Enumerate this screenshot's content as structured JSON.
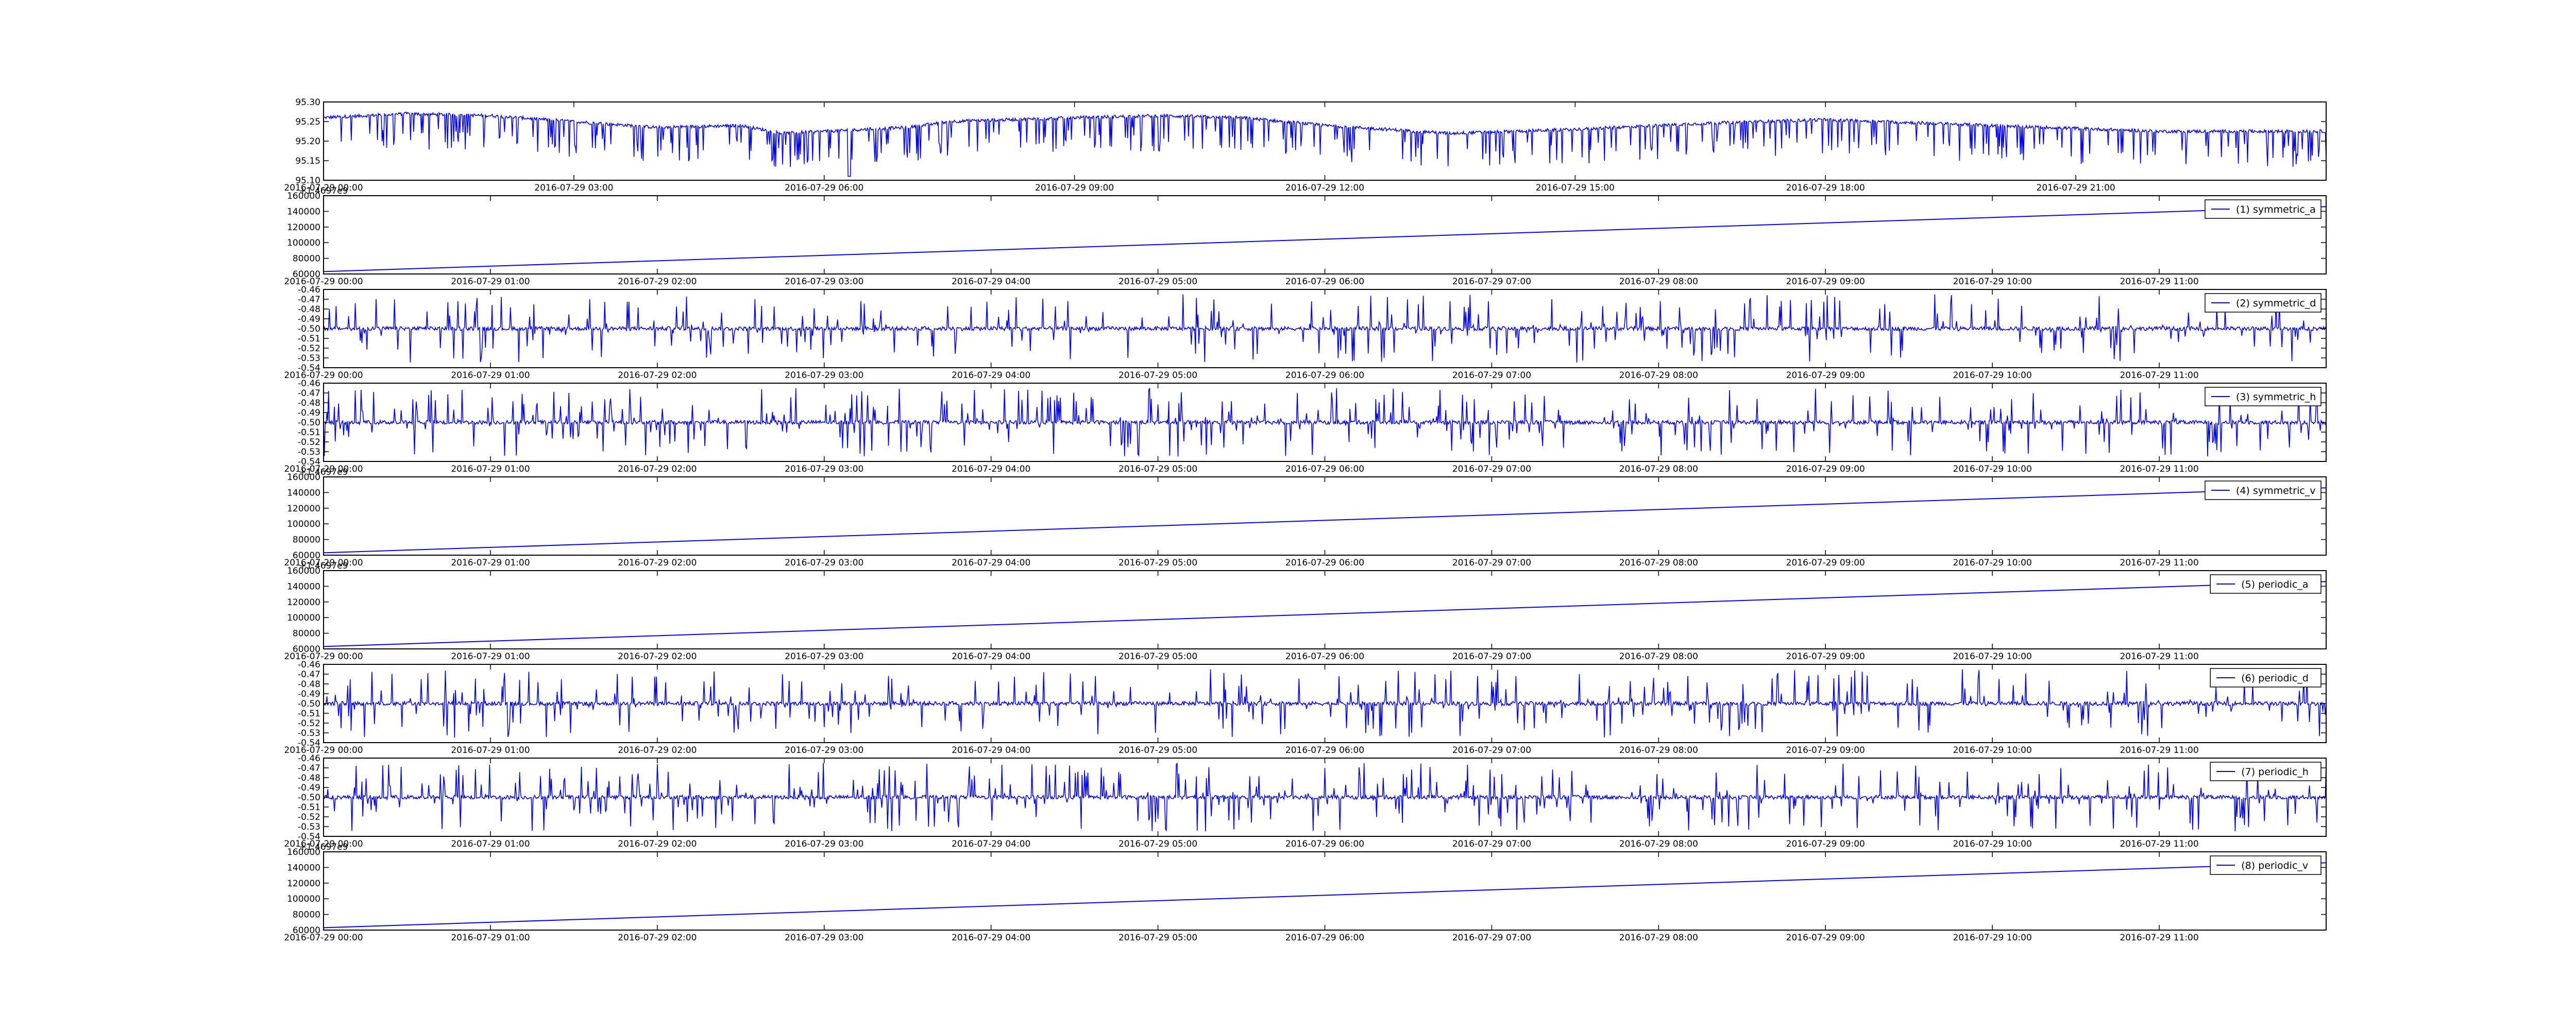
{
  "colors": {
    "line": "#0000ff",
    "axes": "#000000",
    "background": "#ffffff"
  },
  "chart_data": [
    {
      "type": "line",
      "signal": "raw",
      "legend": "",
      "x_labels": [
        "2016-07-29 00:00",
        "2016-07-29 03:00",
        "2016-07-29 06:00",
        "2016-07-29 09:00",
        "2016-07-29 12:00",
        "2016-07-29 15:00",
        "2016-07-29 18:00",
        "2016-07-29 21:00"
      ],
      "xlim": [
        "2016-07-29 00:00",
        "2016-07-30 00:00"
      ],
      "y_ticks": [
        "95.10",
        "95.15",
        "95.20",
        "95.25",
        "95.30"
      ],
      "ylim": [
        95.1,
        95.3
      ],
      "offset_text": "",
      "baseline_points": [
        [
          0,
          95.26
        ],
        [
          2,
          95.27
        ],
        [
          4,
          95.265
        ],
        [
          6,
          95.25
        ],
        [
          8,
          95.235
        ],
        [
          10,
          95.24
        ],
        [
          11,
          95.22
        ],
        [
          14,
          95.235
        ],
        [
          15,
          95.25
        ],
        [
          18,
          95.26
        ],
        [
          20,
          95.265
        ],
        [
          22,
          95.26
        ],
        [
          24,
          95.24
        ],
        [
          27,
          95.22
        ],
        [
          30,
          95.23
        ],
        [
          33,
          95.245
        ],
        [
          36,
          95.255
        ],
        [
          40,
          95.24
        ],
        [
          44,
          95.225
        ],
        [
          47,
          95.225
        ]
      ],
      "spike_depth_range": [
        0.03,
        0.09
      ],
      "note_min": 95.11
    },
    {
      "type": "line",
      "signal": "ramp",
      "legend": "(1) symmetric_a",
      "x_labels": [
        "2016-07-29 00:00",
        "2016-07-29 01:00",
        "2016-07-29 02:00",
        "2016-07-29 03:00",
        "2016-07-29 04:00",
        "2016-07-29 05:00",
        "2016-07-29 06:00",
        "2016-07-29 07:00",
        "2016-07-29 08:00",
        "2016-07-29 09:00",
        "2016-07-29 10:00",
        "2016-07-29 11:00"
      ],
      "xlim": [
        "2016-07-29 00:00",
        "2016-07-29 12:00"
      ],
      "y_ticks": [
        "60000",
        "80000",
        "100000",
        "120000",
        "140000",
        "160000"
      ],
      "ylim": [
        60000,
        160000
      ],
      "offset_text": "+1.4697e9",
      "y_start": 63000,
      "y_end": 146000
    },
    {
      "type": "line",
      "signal": "noise",
      "legend": "(2) symmetric_d",
      "x_labels": [
        "2016-07-29 00:00",
        "2016-07-29 01:00",
        "2016-07-29 02:00",
        "2016-07-29 03:00",
        "2016-07-29 04:00",
        "2016-07-29 05:00",
        "2016-07-29 06:00",
        "2016-07-29 07:00",
        "2016-07-29 08:00",
        "2016-07-29 09:00",
        "2016-07-29 10:00",
        "2016-07-29 11:00"
      ],
      "xlim": [
        "2016-07-29 00:00",
        "2016-07-29 12:00"
      ],
      "y_ticks": [
        "-0.54",
        "-0.53",
        "-0.52",
        "-0.51",
        "-0.50",
        "-0.49",
        "-0.48",
        "-0.47",
        "-0.46"
      ],
      "ylim": [
        -0.54,
        -0.46
      ],
      "offset_text": "",
      "center": -0.5,
      "spike_range": [
        -0.535,
        -0.465
      ]
    },
    {
      "type": "line",
      "signal": "noise",
      "legend": "(3) symmetric_h",
      "x_labels": [
        "2016-07-29 00:00",
        "2016-07-29 01:00",
        "2016-07-29 02:00",
        "2016-07-29 03:00",
        "2016-07-29 04:00",
        "2016-07-29 05:00",
        "2016-07-29 06:00",
        "2016-07-29 07:00",
        "2016-07-29 08:00",
        "2016-07-29 09:00",
        "2016-07-29 10:00",
        "2016-07-29 11:00"
      ],
      "xlim": [
        "2016-07-29 00:00",
        "2016-07-29 12:00"
      ],
      "y_ticks": [
        "-0.54",
        "-0.53",
        "-0.52",
        "-0.51",
        "-0.50",
        "-0.49",
        "-0.48",
        "-0.47",
        "-0.46"
      ],
      "ylim": [
        -0.54,
        -0.46
      ],
      "offset_text": "",
      "center": -0.5,
      "spike_range": [
        -0.535,
        -0.465
      ]
    },
    {
      "type": "line",
      "signal": "ramp",
      "legend": "(4) symmetric_v",
      "x_labels": [
        "2016-07-29 00:00",
        "2016-07-29 01:00",
        "2016-07-29 02:00",
        "2016-07-29 03:00",
        "2016-07-29 04:00",
        "2016-07-29 05:00",
        "2016-07-29 06:00",
        "2016-07-29 07:00",
        "2016-07-29 08:00",
        "2016-07-29 09:00",
        "2016-07-29 10:00",
        "2016-07-29 11:00"
      ],
      "xlim": [
        "2016-07-29 00:00",
        "2016-07-29 12:00"
      ],
      "y_ticks": [
        "60000",
        "80000",
        "100000",
        "120000",
        "140000",
        "160000"
      ],
      "ylim": [
        60000,
        160000
      ],
      "offset_text": "+1.4697e9",
      "y_start": 63000,
      "y_end": 146000
    },
    {
      "type": "line",
      "signal": "ramp",
      "legend": "(5) periodic_a",
      "x_labels": [
        "2016-07-29 00:00",
        "2016-07-29 01:00",
        "2016-07-29 02:00",
        "2016-07-29 03:00",
        "2016-07-29 04:00",
        "2016-07-29 05:00",
        "2016-07-29 06:00",
        "2016-07-29 07:00",
        "2016-07-29 08:00",
        "2016-07-29 09:00",
        "2016-07-29 10:00",
        "2016-07-29 11:00"
      ],
      "xlim": [
        "2016-07-29 00:00",
        "2016-07-29 12:00"
      ],
      "y_ticks": [
        "60000",
        "80000",
        "100000",
        "120000",
        "140000",
        "160000"
      ],
      "ylim": [
        60000,
        160000
      ],
      "offset_text": "+1.4697e9",
      "y_start": 63000,
      "y_end": 146000
    },
    {
      "type": "line",
      "signal": "noise",
      "legend": "(6) periodic_d",
      "x_labels": [
        "2016-07-29 00:00",
        "2016-07-29 01:00",
        "2016-07-29 02:00",
        "2016-07-29 03:00",
        "2016-07-29 04:00",
        "2016-07-29 05:00",
        "2016-07-29 06:00",
        "2016-07-29 07:00",
        "2016-07-29 08:00",
        "2016-07-29 09:00",
        "2016-07-29 10:00",
        "2016-07-29 11:00"
      ],
      "xlim": [
        "2016-07-29 00:00",
        "2016-07-29 12:00"
      ],
      "y_ticks": [
        "-0.54",
        "-0.53",
        "-0.52",
        "-0.51",
        "-0.50",
        "-0.49",
        "-0.48",
        "-0.47",
        "-0.46"
      ],
      "ylim": [
        -0.54,
        -0.46
      ],
      "offset_text": "",
      "center": -0.5,
      "spike_range": [
        -0.535,
        -0.465
      ]
    },
    {
      "type": "line",
      "signal": "noise",
      "legend": "(7) periodic_h",
      "x_labels": [
        "2016-07-29 00:00",
        "2016-07-29 01:00",
        "2016-07-29 02:00",
        "2016-07-29 03:00",
        "2016-07-29 04:00",
        "2016-07-29 05:00",
        "2016-07-29 06:00",
        "2016-07-29 07:00",
        "2016-07-29 08:00",
        "2016-07-29 09:00",
        "2016-07-29 10:00",
        "2016-07-29 11:00"
      ],
      "xlim": [
        "2016-07-29 00:00",
        "2016-07-29 12:00"
      ],
      "y_ticks": [
        "-0.54",
        "-0.53",
        "-0.52",
        "-0.51",
        "-0.50",
        "-0.49",
        "-0.48",
        "-0.47",
        "-0.46"
      ],
      "ylim": [
        -0.54,
        -0.46
      ],
      "offset_text": "",
      "center": -0.5,
      "spike_range": [
        -0.535,
        -0.465
      ]
    },
    {
      "type": "line",
      "signal": "ramp",
      "legend": "(8) periodic_v",
      "x_labels": [
        "2016-07-29 00:00",
        "2016-07-29 01:00",
        "2016-07-29 02:00",
        "2016-07-29 03:00",
        "2016-07-29 04:00",
        "2016-07-29 05:00",
        "2016-07-29 06:00",
        "2016-07-29 07:00",
        "2016-07-29 08:00",
        "2016-07-29 09:00",
        "2016-07-29 10:00",
        "2016-07-29 11:00"
      ],
      "xlim": [
        "2016-07-29 00:00",
        "2016-07-29 12:00"
      ],
      "y_ticks": [
        "60000",
        "80000",
        "100000",
        "120000",
        "140000",
        "160000"
      ],
      "ylim": [
        60000,
        160000
      ],
      "offset_text": "+1.4697e9",
      "y_start": 63000,
      "y_end": 146000
    }
  ]
}
